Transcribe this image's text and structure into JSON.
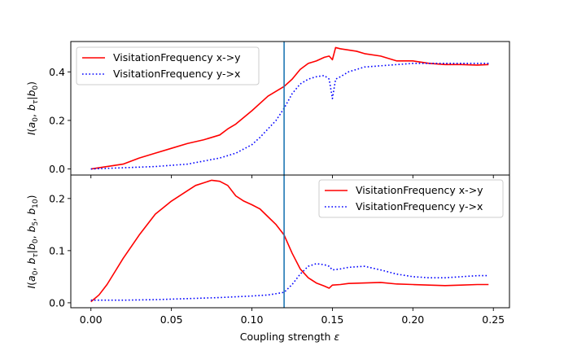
{
  "figure": {
    "xlabel_text": "Coupling strength ",
    "xlabel_symbol": "ε"
  },
  "chart_data": [
    {
      "type": "line",
      "panel": "top",
      "ylabel": "I(a0, bτ|b0)",
      "xlim": [
        -0.0125,
        0.26
      ],
      "ylim": [
        -0.025,
        0.525
      ],
      "xticks": [
        0.0,
        0.05,
        0.1,
        0.15,
        0.2,
        0.25
      ],
      "xtick_labels": [],
      "yticks": [
        0.0,
        0.2,
        0.4
      ],
      "ytick_labels": [
        "0.0",
        "0.2",
        "0.4"
      ],
      "vline_x": 0.12,
      "legend_position": "upper-left",
      "series": [
        {
          "name": "VisitationFrequency x->y",
          "color": "#ff0000",
          "style": "solid",
          "x": [
            0.0,
            0.01,
            0.02,
            0.03,
            0.04,
            0.05,
            0.06,
            0.07,
            0.08,
            0.085,
            0.09,
            0.1,
            0.11,
            0.12,
            0.125,
            0.13,
            0.135,
            0.14,
            0.145,
            0.148,
            0.15,
            0.152,
            0.155,
            0.16,
            0.165,
            0.17,
            0.18,
            0.19,
            0.2,
            0.21,
            0.22,
            0.23,
            0.24,
            0.247
          ],
          "values": [
            0.0,
            0.01,
            0.02,
            0.045,
            0.065,
            0.085,
            0.105,
            0.12,
            0.14,
            0.165,
            0.185,
            0.24,
            0.3,
            0.34,
            0.37,
            0.41,
            0.435,
            0.445,
            0.46,
            0.465,
            0.45,
            0.5,
            0.495,
            0.49,
            0.485,
            0.475,
            0.465,
            0.445,
            0.445,
            0.435,
            0.43,
            0.43,
            0.428,
            0.43
          ]
        },
        {
          "name": "VisitationFrequency y->x",
          "color": "#0000ff",
          "style": "dotted",
          "x": [
            0.0,
            0.02,
            0.04,
            0.06,
            0.08,
            0.09,
            0.1,
            0.105,
            0.11,
            0.115,
            0.12,
            0.125,
            0.13,
            0.135,
            0.14,
            0.145,
            0.148,
            0.15,
            0.152,
            0.155,
            0.16,
            0.17,
            0.18,
            0.19,
            0.2,
            0.21,
            0.22,
            0.23,
            0.24,
            0.247
          ],
          "values": [
            0.0,
            0.005,
            0.01,
            0.02,
            0.045,
            0.065,
            0.1,
            0.13,
            0.165,
            0.2,
            0.25,
            0.31,
            0.35,
            0.37,
            0.38,
            0.385,
            0.37,
            0.29,
            0.37,
            0.38,
            0.4,
            0.42,
            0.425,
            0.43,
            0.435,
            0.435,
            0.435,
            0.435,
            0.435,
            0.435
          ]
        }
      ]
    },
    {
      "type": "line",
      "panel": "bottom",
      "ylabel": "I(a0, bτ|b0, b5, b10)",
      "xlim": [
        -0.0125,
        0.26
      ],
      "ylim": [
        -0.0095,
        0.245
      ],
      "xticks": [
        0.0,
        0.05,
        0.1,
        0.15,
        0.2,
        0.25
      ],
      "xtick_labels": [
        "0.00",
        "0.05",
        "0.10",
        "0.15",
        "0.20",
        "0.25"
      ],
      "yticks": [
        0.0,
        0.1,
        0.2
      ],
      "ytick_labels": [
        "0.0",
        "0.1",
        "0.2"
      ],
      "vline_x": 0.12,
      "legend_position": "upper-right",
      "series": [
        {
          "name": "VisitationFrequency x->y",
          "color": "#ff0000",
          "style": "solid",
          "x": [
            0.0,
            0.005,
            0.01,
            0.015,
            0.02,
            0.03,
            0.04,
            0.05,
            0.06,
            0.065,
            0.07,
            0.075,
            0.08,
            0.085,
            0.09,
            0.095,
            0.1,
            0.105,
            0.11,
            0.115,
            0.12,
            0.125,
            0.13,
            0.135,
            0.14,
            0.145,
            0.148,
            0.15,
            0.155,
            0.16,
            0.17,
            0.18,
            0.19,
            0.2,
            0.21,
            0.22,
            0.23,
            0.24,
            0.247
          ],
          "values": [
            0.002,
            0.015,
            0.035,
            0.06,
            0.085,
            0.13,
            0.17,
            0.195,
            0.215,
            0.225,
            0.23,
            0.235,
            0.233,
            0.225,
            0.205,
            0.195,
            0.188,
            0.18,
            0.165,
            0.15,
            0.13,
            0.095,
            0.065,
            0.048,
            0.038,
            0.032,
            0.028,
            0.034,
            0.035,
            0.037,
            0.038,
            0.039,
            0.036,
            0.035,
            0.034,
            0.033,
            0.034,
            0.035,
            0.035
          ]
        },
        {
          "name": "VisitationFrequency y->x",
          "color": "#0000ff",
          "style": "dotted",
          "x": [
            0.0,
            0.02,
            0.04,
            0.06,
            0.08,
            0.1,
            0.11,
            0.12,
            0.125,
            0.13,
            0.135,
            0.14,
            0.145,
            0.148,
            0.15,
            0.155,
            0.16,
            0.17,
            0.18,
            0.19,
            0.2,
            0.21,
            0.22,
            0.23,
            0.24,
            0.247
          ],
          "values": [
            0.005,
            0.005,
            0.006,
            0.008,
            0.01,
            0.013,
            0.015,
            0.02,
            0.035,
            0.055,
            0.07,
            0.075,
            0.073,
            0.07,
            0.063,
            0.065,
            0.068,
            0.07,
            0.063,
            0.055,
            0.05,
            0.048,
            0.048,
            0.05,
            0.052,
            0.052
          ]
        }
      ]
    }
  ]
}
